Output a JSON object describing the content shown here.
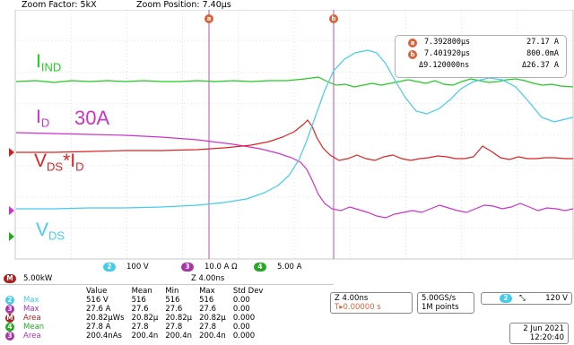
{
  "topbar": {
    "zoom_factor": "Zoom Factor: 5kX",
    "zoom_position": "Zoom Position: 7.40µs"
  },
  "cursors": {
    "a_label": "a",
    "b_label": "b"
  },
  "labels": {
    "i_ind_main": "I",
    "i_ind_sub": "IND",
    "i_d_main": "I",
    "i_d_sub": "D",
    "i_d_value": "30A",
    "vdsid_v": "V",
    "vdsid_ds": "DS",
    "vdsid_star": "*I",
    "vdsid_d": "D",
    "vds_main": "V",
    "vds_sub": "DS"
  },
  "readout": {
    "row_a_time": "7.392800µs",
    "row_a_value": "27.17 A",
    "row_b_time": "7.401920µs",
    "row_b_value": "800.0mA",
    "row_delta_time": "Δ9.120000ns",
    "row_delta_value": "Δ26.37 A"
  },
  "channel_scales": {
    "m_label": "M",
    "m_scale": "5.00kW",
    "ch2_num": "2",
    "ch2_scale": "100 V",
    "ch3_num": "3",
    "ch3_scale": "10.0 A Ω",
    "ch4_num": "4",
    "ch4_scale": "5.00 A",
    "m_delay": "Z 4.00ns"
  },
  "measurements": {
    "headers": [
      "",
      "",
      "Value",
      "Mean",
      "Min",
      "Max",
      "Std Dev"
    ],
    "rows": [
      {
        "ch": "2",
        "name": "Max",
        "value": "516 V",
        "mean": "516",
        "min": "516",
        "max": "516",
        "std": "0.00"
      },
      {
        "ch": "3",
        "name": "Max",
        "value": "27.6 A",
        "mean": "27.6",
        "min": "27.6",
        "max": "27.6",
        "std": "0.00"
      },
      {
        "ch": "M",
        "name": "Area",
        "value": "20.82µWs",
        "mean": "20.82µ",
        "min": "20.82µ",
        "max": "20.82µ",
        "std": "0.000"
      },
      {
        "ch": "4",
        "name": "Mean",
        "value": "27.8 A",
        "mean": "27.8",
        "min": "27.8",
        "max": "27.8",
        "std": "0.00"
      },
      {
        "ch": "3",
        "name": "Area",
        "value": "200.4nAs",
        "mean": "200.4n",
        "min": "200.4n",
        "max": "200.4n",
        "std": "0.000"
      }
    ]
  },
  "timebase": {
    "zoom_time": "Z 4.00ns",
    "trigger_pos": "T▸0.00000 s"
  },
  "acquisition": {
    "sample_rate": "5.00GS/s",
    "record_length": "1M points"
  },
  "trigger": {
    "ch": "2",
    "slope": "⤡",
    "level": "120 V"
  },
  "date": {
    "date": "2 Jun 2021",
    "time": "12:20:40"
  },
  "colors": {
    "ch_green": "#22cc22",
    "ch_magenta": "#cc33cc",
    "ch_cyan": "#44ccee",
    "math_red": "#dd2222",
    "cursor_orange": "#d9623a"
  }
}
